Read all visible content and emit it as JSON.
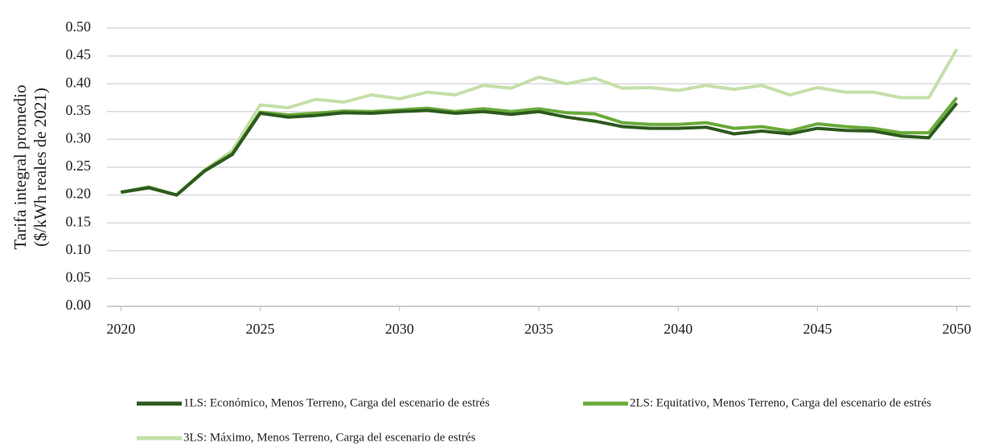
{
  "chart_data": {
    "type": "line",
    "ylabel": [
      "Tarifa integral promedio",
      "($/kWh reales de 2021)"
    ],
    "x": [
      2020,
      2021,
      2022,
      2023,
      2024,
      2025,
      2026,
      2027,
      2028,
      2029,
      2030,
      2031,
      2032,
      2033,
      2034,
      2035,
      2036,
      2037,
      2038,
      2039,
      2040,
      2041,
      2042,
      2043,
      2044,
      2045,
      2046,
      2047,
      2048,
      2049,
      2050
    ],
    "xlim": [
      2019.5,
      2050.5
    ],
    "xticks": [
      2020,
      2025,
      2030,
      2035,
      2040,
      2045,
      2050
    ],
    "ylim": [
      0,
      0.5
    ],
    "yticks": [
      {
        "value": 0,
        "label": "0.00"
      },
      {
        "value": 0.05,
        "label": "0.05"
      },
      {
        "value": 0.1,
        "label": "0.10"
      },
      {
        "value": 0.15,
        "label": "0.15"
      },
      {
        "value": 0.2,
        "label": "0.20"
      },
      {
        "value": 0.25,
        "label": "0.25"
      },
      {
        "value": 0.3,
        "label": "0.30"
      },
      {
        "value": 0.35,
        "label": "0.35"
      },
      {
        "value": 0.4,
        "label": "0.40"
      },
      {
        "value": 0.45,
        "label": "0.45"
      },
      {
        "value": 0.5,
        "label": "0.50"
      }
    ],
    "grid": true,
    "legend": "bottom",
    "series": [
      {
        "name": "1LS: Económico, Menos Terreno, Carga del escenario de estrés",
        "color": "#2d5a1e",
        "values": [
          0.205,
          0.213,
          0.2,
          0.243,
          0.273,
          0.347,
          0.34,
          0.343,
          0.348,
          0.347,
          0.35,
          0.352,
          0.347,
          0.35,
          0.345,
          0.35,
          0.34,
          0.333,
          0.323,
          0.32,
          0.32,
          0.322,
          0.31,
          0.315,
          0.31,
          0.32,
          0.316,
          0.315,
          0.306,
          0.303,
          0.365
        ]
      },
      {
        "name": "2LS: Equitativo, Menos Terreno, Carga del escenario de estrés",
        "color": "#6aaa3a",
        "values": [
          0.205,
          0.214,
          0.2,
          0.244,
          0.275,
          0.349,
          0.344,
          0.347,
          0.351,
          0.35,
          0.353,
          0.356,
          0.35,
          0.355,
          0.35,
          0.355,
          0.348,
          0.346,
          0.33,
          0.327,
          0.327,
          0.33,
          0.32,
          0.323,
          0.315,
          0.328,
          0.323,
          0.32,
          0.312,
          0.312,
          0.375
        ]
      },
      {
        "name": "3LS: Máximo, Menos Terreno, Carga del escenario de estrés",
        "color": "#c4dfa8",
        "values": [
          0.205,
          0.215,
          0.2,
          0.245,
          0.28,
          0.362,
          0.357,
          0.372,
          0.367,
          0.38,
          0.373,
          0.385,
          0.38,
          0.397,
          0.392,
          0.412,
          0.4,
          0.41,
          0.392,
          0.393,
          0.388,
          0.397,
          0.39,
          0.397,
          0.38,
          0.393,
          0.385,
          0.385,
          0.375,
          0.375,
          0.462
        ]
      }
    ]
  }
}
